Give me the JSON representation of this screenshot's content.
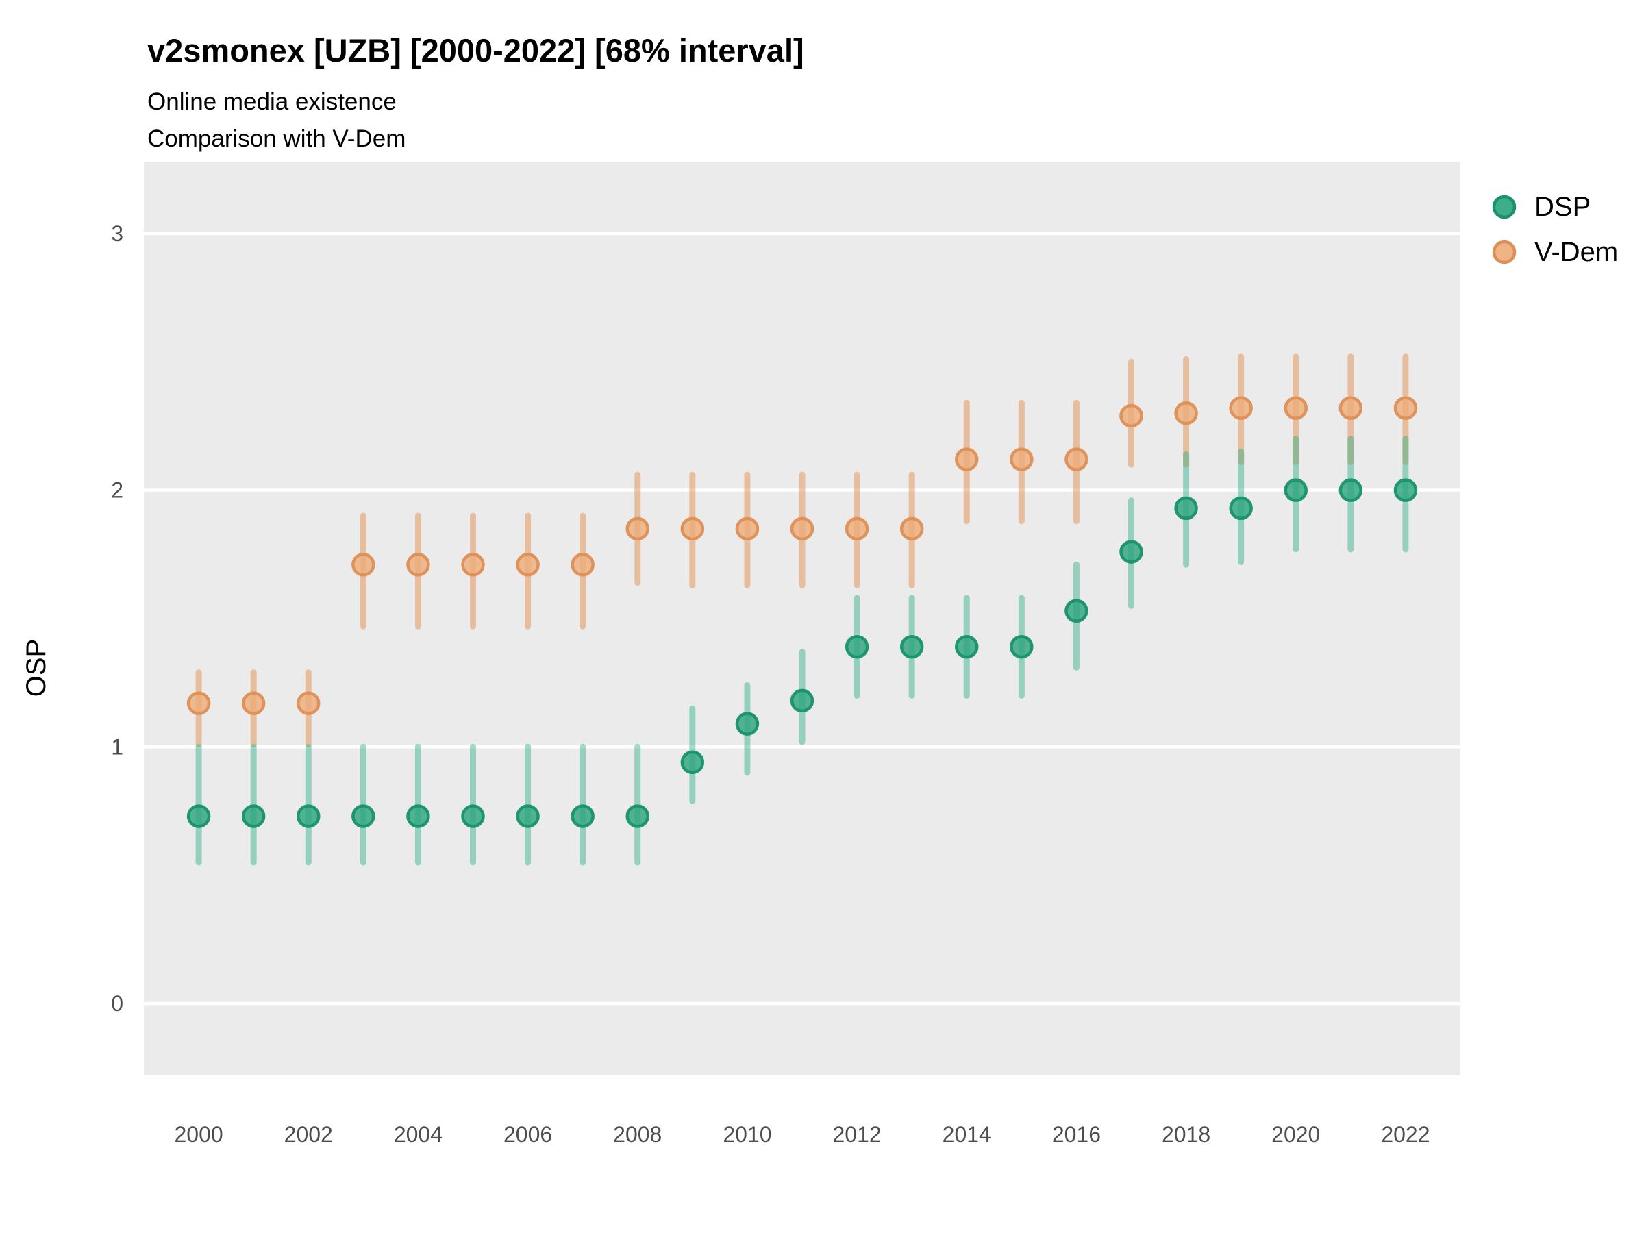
{
  "header": {
    "title": "v2smonex [UZB] [2000-2022] [68% interval]",
    "subtitle_line1": "Online media existence",
    "subtitle_line2": "Comparison with V-Dem"
  },
  "axes": {
    "y_title": "OSP",
    "y_ticks": [
      0,
      1,
      2,
      3
    ],
    "x_ticks": [
      2000,
      2002,
      2004,
      2006,
      2008,
      2010,
      2012,
      2014,
      2016,
      2018,
      2020,
      2022
    ],
    "x_domain": [
      1999.0,
      2023.0
    ],
    "y_domain": [
      -0.28,
      3.28
    ]
  },
  "legend": {
    "items": [
      {
        "label": "DSP",
        "series": "DSP"
      },
      {
        "label": "V-Dem",
        "series": "V-Dem"
      }
    ]
  },
  "colors": {
    "panel_bg": "#EBEBEB",
    "gridline": "#FFFFFF",
    "axis_text": "#4d4d4d",
    "series": {
      "DSP": {
        "fill": "#29A47D",
        "stroke": "#17926C",
        "bar": "#2FAF88",
        "bar_opacity": 0.45,
        "dot_opacity": 0.8
      },
      "V-Dem": {
        "fill": "#EDAC79",
        "stroke": "#DE8F55",
        "bar": "#E29A5F",
        "bar_opacity": 0.55,
        "dot_opacity": 0.8
      }
    }
  },
  "chart_data": {
    "type": "scatter",
    "subtype": "pointrange",
    "title": "v2smonex [UZB] [2000-2022] [68% interval]",
    "xlabel": "",
    "ylabel": "OSP",
    "interval": "68%",
    "grid": "major-horizontal",
    "legend_position": "right-top",
    "ylim": [
      -0.28,
      3.28
    ],
    "x": [
      2000,
      2001,
      2002,
      2003,
      2004,
      2005,
      2006,
      2007,
      2008,
      2009,
      2010,
      2011,
      2012,
      2013,
      2014,
      2015,
      2016,
      2017,
      2018,
      2019,
      2020,
      2021,
      2022
    ],
    "series": [
      {
        "name": "DSP",
        "values": [
          0.73,
          0.73,
          0.73,
          0.73,
          0.73,
          0.73,
          0.73,
          0.73,
          0.73,
          0.94,
          1.09,
          1.18,
          1.39,
          1.39,
          1.39,
          1.39,
          1.53,
          1.76,
          1.93,
          1.93,
          2.0,
          2.0,
          2.0
        ],
        "lo": [
          0.55,
          0.55,
          0.55,
          0.55,
          0.55,
          0.55,
          0.55,
          0.55,
          0.55,
          0.79,
          0.9,
          1.02,
          1.2,
          1.2,
          1.2,
          1.2,
          1.31,
          1.55,
          1.71,
          1.72,
          1.77,
          1.77,
          1.77
        ],
        "hi": [
          1.0,
          1.0,
          1.0,
          1.0,
          1.0,
          1.0,
          1.0,
          1.0,
          1.0,
          1.15,
          1.24,
          1.37,
          1.58,
          1.58,
          1.58,
          1.58,
          1.71,
          1.96,
          2.14,
          2.15,
          2.2,
          2.2,
          2.2
        ]
      },
      {
        "name": "V-Dem",
        "values": [
          1.17,
          1.17,
          1.17,
          1.71,
          1.71,
          1.71,
          1.71,
          1.71,
          1.85,
          1.85,
          1.85,
          1.85,
          1.85,
          1.85,
          2.12,
          2.12,
          2.12,
          2.29,
          2.3,
          2.32,
          2.32,
          2.32,
          2.32
        ],
        "lo": [
          1.01,
          1.01,
          1.01,
          1.47,
          1.47,
          1.47,
          1.47,
          1.47,
          1.64,
          1.63,
          1.63,
          1.63,
          1.63,
          1.63,
          1.88,
          1.88,
          1.88,
          2.1,
          2.1,
          2.11,
          2.11,
          2.11,
          2.11
        ],
        "hi": [
          1.29,
          1.29,
          1.29,
          1.9,
          1.9,
          1.9,
          1.9,
          1.9,
          2.06,
          2.06,
          2.06,
          2.06,
          2.06,
          2.06,
          2.34,
          2.34,
          2.34,
          2.5,
          2.51,
          2.52,
          2.52,
          2.52,
          2.52
        ]
      }
    ]
  }
}
